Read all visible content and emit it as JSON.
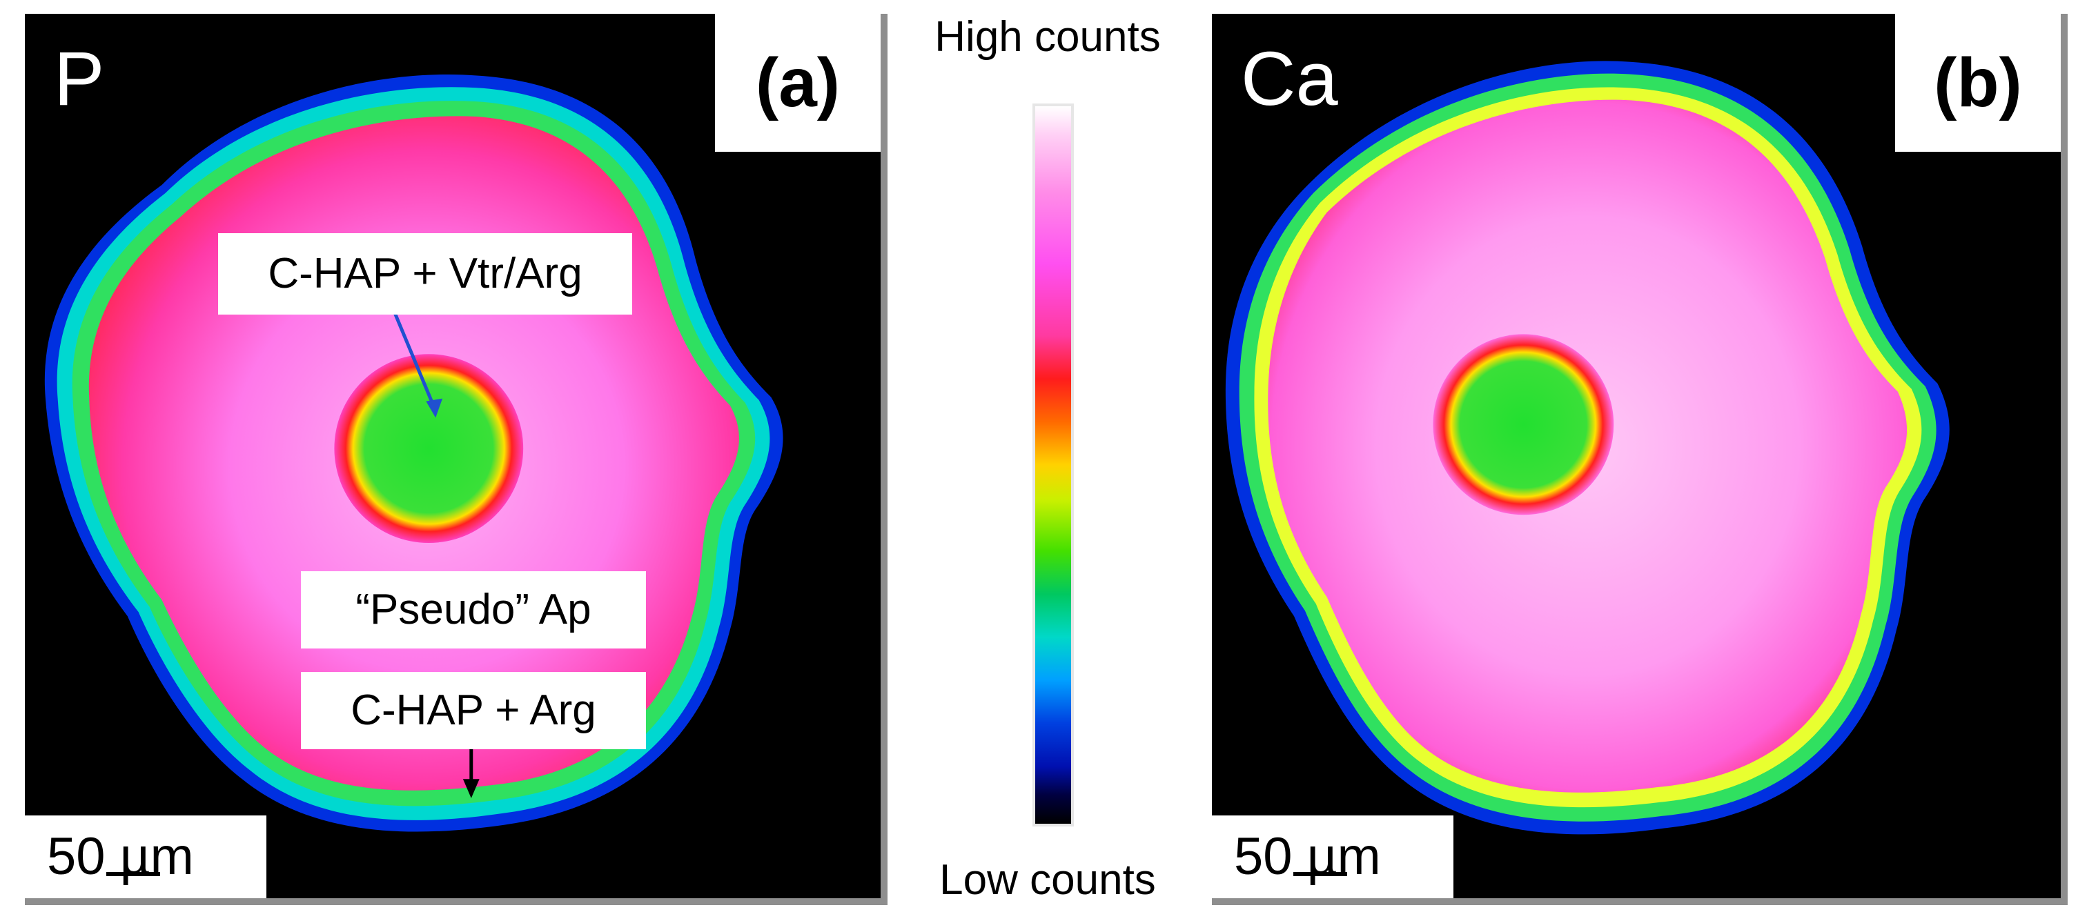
{
  "panel_a": {
    "element": "P",
    "letter": "(a)",
    "scale": {
      "value": "50",
      "unit": "µm"
    },
    "annotations": {
      "center": "C-HAP + Vtr/Arg",
      "middle": "“Pseudo” Ap",
      "rim": "C-HAP + Arg"
    }
  },
  "panel_b": {
    "element": "Ca",
    "letter": "(b)",
    "scale": {
      "value": "50",
      "unit": "µm"
    }
  },
  "colorbar": {
    "high_label": "High counts",
    "low_label": "Low counts",
    "colors": [
      "#ffffff",
      "#ff4ff0",
      "#ff1c1c",
      "#ffd200",
      "#44e000",
      "#00d8c8",
      "#0040e0",
      "#000000"
    ]
  }
}
